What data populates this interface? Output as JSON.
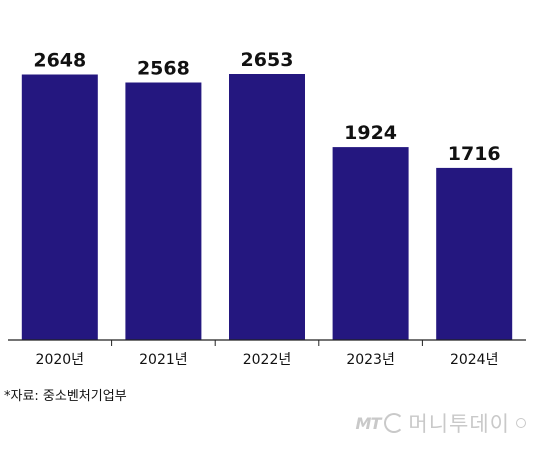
{
  "chart_data": {
    "type": "bar",
    "categories": [
      "2020년",
      "2021년",
      "2022년",
      "2023년",
      "2024년"
    ],
    "values": [
      2648,
      2568,
      2653,
      1924,
      1716
    ],
    "data_labels": [
      "2648",
      "2568",
      "2653",
      "1924",
      "1716"
    ],
    "title": "",
    "xlabel": "",
    "ylabel": "",
    "ylim": [
      0,
      2653
    ],
    "grid": false,
    "bar_color": "#24177f",
    "axis_color": "#222222"
  },
  "source_note": "*자료: 중소벤처기업부",
  "watermark": {
    "logo_text": "MT",
    "brand_text": "머니투데이"
  }
}
